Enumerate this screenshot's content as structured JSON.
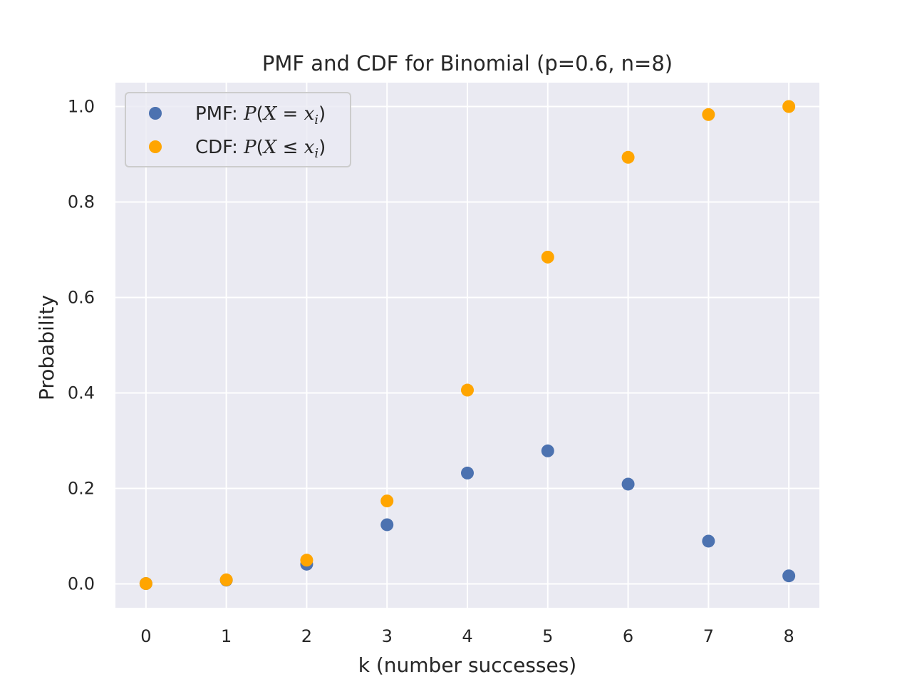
{
  "chart_data": {
    "type": "scatter",
    "title": "PMF and CDF for Binomial (p=0.6, n=8)",
    "xlabel": "k (number successes)",
    "ylabel": "Probability",
    "xlim": [
      -0.38,
      8.38
    ],
    "ylim": [
      -0.05,
      1.05
    ],
    "xticks": [
      0,
      1,
      2,
      3,
      4,
      5,
      6,
      7,
      8
    ],
    "xtick_labels": [
      "0",
      "1",
      "2",
      "3",
      "4",
      "5",
      "6",
      "7",
      "8"
    ],
    "yticks": [
      0.0,
      0.2,
      0.4,
      0.6,
      0.8,
      1.0
    ],
    "ytick_labels": [
      "0.0",
      "0.2",
      "0.4",
      "0.6",
      "0.8",
      "1.0"
    ],
    "grid": true,
    "legend_position": "top-left",
    "background": "#eaeaf2",
    "x": [
      0,
      1,
      2,
      3,
      4,
      5,
      6,
      7,
      8
    ],
    "series": [
      {
        "name": "PMF",
        "legend_prefix": "PMF: ",
        "legend_math": {
          "p": "P",
          "open": "(",
          "X": "X",
          "op": " = ",
          "x": "x",
          "sub": "i",
          "close": ")"
        },
        "color": "#4c72b0",
        "values": [
          0.0007,
          0.0079,
          0.0413,
          0.1239,
          0.2322,
          0.2787,
          0.209,
          0.0896,
          0.0168
        ]
      },
      {
        "name": "CDF",
        "legend_prefix": "CDF: ",
        "legend_math": {
          "p": "P",
          "open": "(",
          "X": "X",
          "op": " ≤ ",
          "x": "x",
          "sub": "i",
          "close": ")"
        },
        "color": "#ffa500",
        "values": [
          0.0007,
          0.0085,
          0.0498,
          0.1737,
          0.4059,
          0.6846,
          0.8936,
          0.9832,
          1.0
        ]
      }
    ]
  }
}
